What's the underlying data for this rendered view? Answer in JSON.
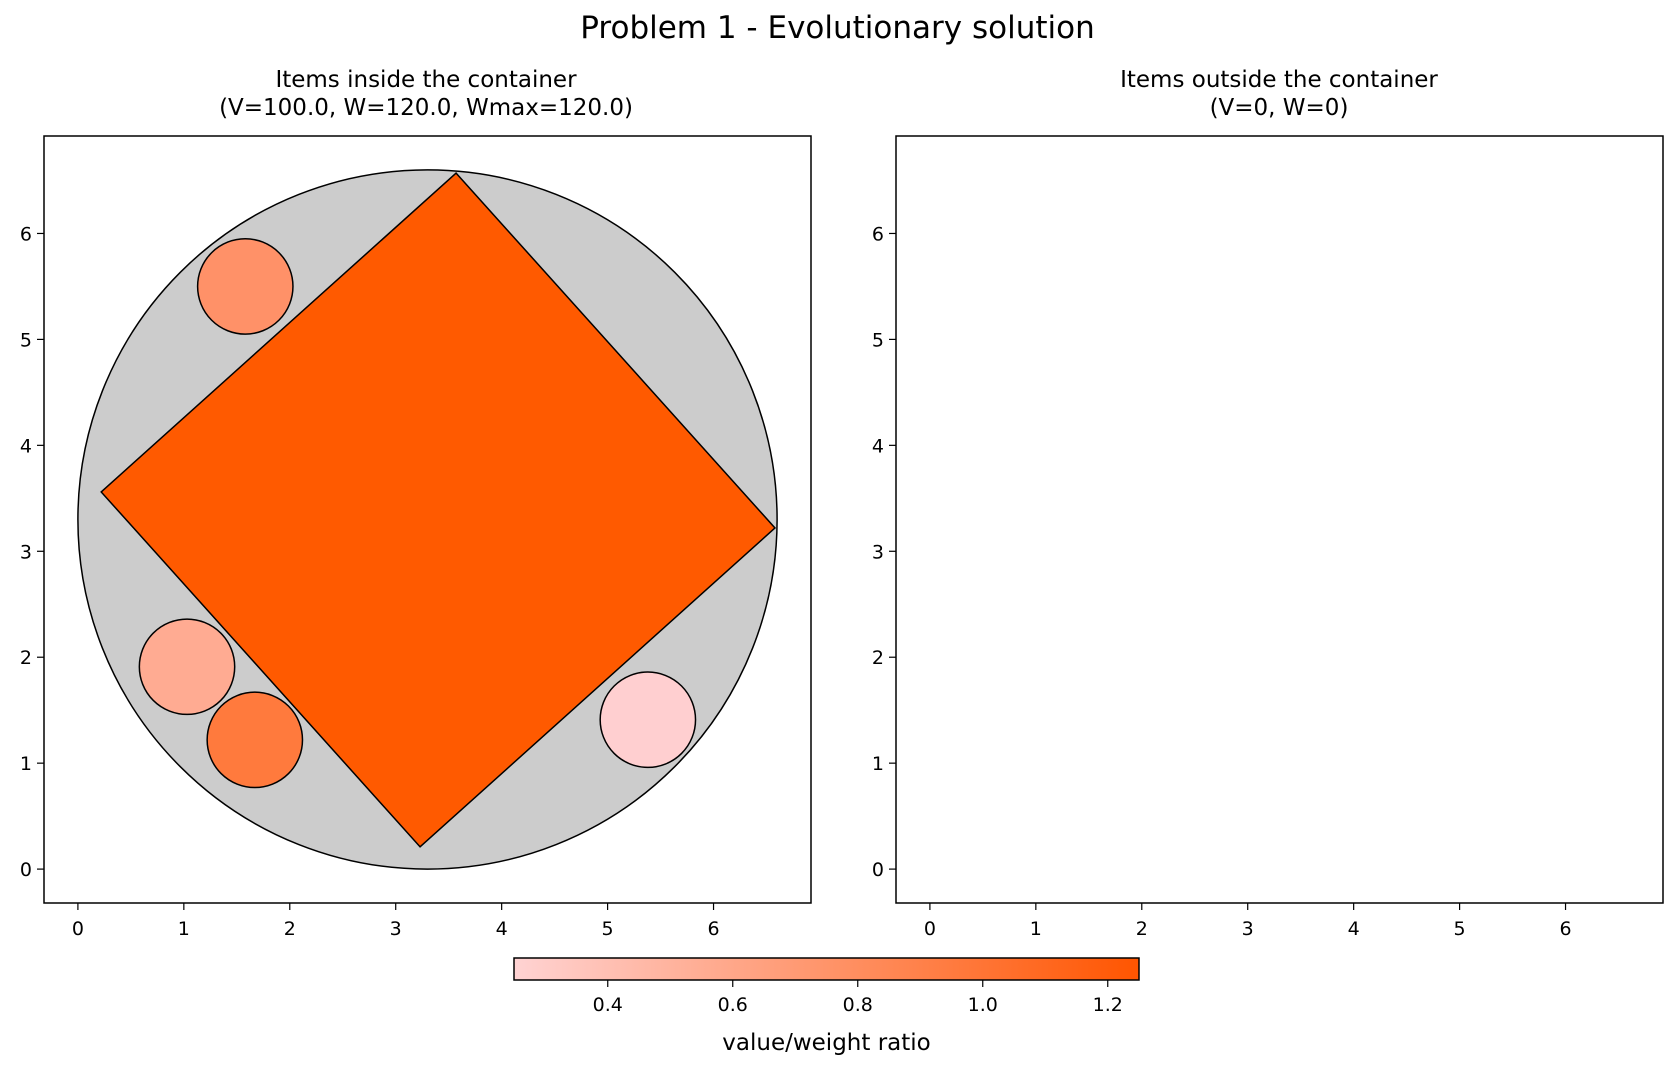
{
  "suptitle": "Problem 1 - Evolutionary solution",
  "chart_data": [
    {
      "type": "packing-plot",
      "title_line1": "Items inside the container",
      "title_line2": "(V=100.0, W=120.0, Wmax=120.0)",
      "xlim": [
        -0.32,
        6.92
      ],
      "ylim": [
        -0.32,
        6.92
      ],
      "xticks": [
        0,
        1,
        2,
        3,
        4,
        5,
        6
      ],
      "yticks": [
        0,
        1,
        2,
        3,
        4,
        5,
        6
      ],
      "container": {
        "shape": "circle",
        "center": [
          3.3,
          3.3
        ],
        "radius": 3.3,
        "fill": "#cccccc"
      },
      "items": [
        {
          "shape": "polygon",
          "points": [
            [
              3.57,
              6.57
            ],
            [
              6.58,
              3.22
            ],
            [
              3.23,
              0.21
            ],
            [
              0.22,
              3.56
            ]
          ],
          "ratio": 1.25,
          "fill": "#ff5a00"
        },
        {
          "shape": "circle",
          "center": [
            1.58,
            5.5
          ],
          "radius": 0.45,
          "ratio": 0.88,
          "fill": "#ff9168"
        },
        {
          "shape": "circle",
          "center": [
            1.03,
            1.91
          ],
          "radius": 0.45,
          "ratio": 0.66,
          "fill": "#ffab92"
        },
        {
          "shape": "circle",
          "center": [
            1.67,
            1.22
          ],
          "radius": 0.45,
          "ratio": 1.02,
          "fill": "#ff7a3d"
        },
        {
          "shape": "circle",
          "center": [
            5.38,
            1.41
          ],
          "radius": 0.45,
          "ratio": 0.27,
          "fill": "#ffcfd0"
        }
      ]
    },
    {
      "type": "packing-plot",
      "title_line1": "Items outside the container",
      "title_line2": "(V=0, W=0)",
      "xlim": [
        -0.32,
        6.92
      ],
      "ylim": [
        -0.32,
        6.92
      ],
      "xticks": [
        0,
        1,
        2,
        3,
        4,
        5,
        6
      ],
      "yticks": [
        0,
        1,
        2,
        3,
        4,
        5,
        6
      ],
      "items": []
    }
  ],
  "colorbar": {
    "label": "value/weight ratio",
    "min": 0.25,
    "max": 1.25,
    "ticks": [
      0.4,
      0.6,
      0.8,
      1.0,
      1.2
    ],
    "color_low": "#ffd3d3",
    "color_high": "#ff5500"
  }
}
